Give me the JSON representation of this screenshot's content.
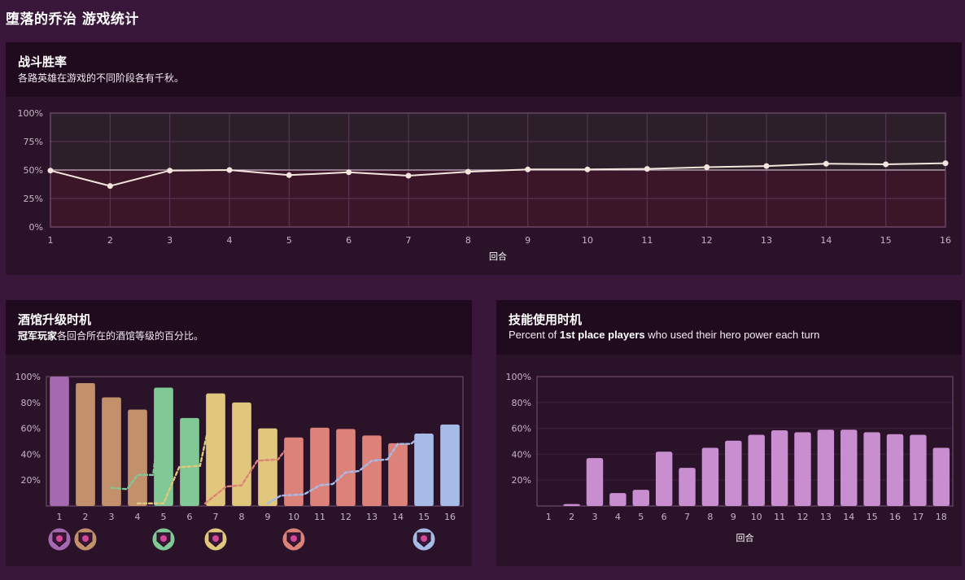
{
  "page": {
    "title": "堕落的乔治 游戏统计"
  },
  "winrate": {
    "title": "战斗胜率",
    "subtitle": "各路英雄在游戏的不同阶段各有千秋。",
    "colors": {
      "line": "#f5e6dd",
      "upper_band": "#2d1f2a",
      "lower_band": "#3b1528",
      "frame": "#7a5277"
    }
  },
  "tavern": {
    "title": "酒馆升级时机",
    "subtitle_bold": "冠军玩家",
    "subtitle_rest": "各回合所在的酒馆等级的百分比。"
  },
  "hero_power": {
    "title": "技能使用时机",
    "subtitle_pre": "Percent of ",
    "subtitle_bold": "1st place players",
    "subtitle_post": " who used their hero power each turn"
  },
  "chart_data": [
    {
      "type": "line",
      "title": "战斗胜率",
      "xlabel": "回合",
      "ylabel": "",
      "x": [
        1,
        2,
        3,
        4,
        5,
        6,
        7,
        8,
        9,
        10,
        11,
        12,
        13,
        14,
        15,
        16
      ],
      "y_ticks": [
        "0%",
        "25%",
        "50%",
        "75%",
        "100%"
      ],
      "ylim": [
        0,
        100
      ],
      "reference_line": 50,
      "series": [
        {
          "values": [
            49.5,
            36,
            49.5,
            50,
            45.5,
            48,
            45,
            48.5,
            50.5,
            50.5,
            51,
            52.5,
            53.5,
            55.5,
            55,
            56
          ]
        }
      ],
      "grid": true
    },
    {
      "type": "bar",
      "title": "酒馆升级时机",
      "xlabel": "",
      "categories": [
        "1",
        "2",
        "3",
        "4",
        "5",
        "6",
        "7",
        "8",
        "9",
        "10",
        "11",
        "12",
        "13",
        "14",
        "15",
        "16"
      ],
      "y_ticks": [
        "20%",
        "40%",
        "60%",
        "80%",
        "100%"
      ],
      "ylim": [
        0,
        100
      ],
      "values": [
        100,
        95,
        84,
        74.5,
        91.5,
        68,
        87,
        80,
        60,
        53,
        60.5,
        59.5,
        54.5,
        48.5,
        56,
        63
      ],
      "bar_colors": [
        "#a469b1",
        "#c2916b",
        "#c2916b",
        "#c2916b",
        "#80c896",
        "#80c896",
        "#e1c77c",
        "#e1c77c",
        "#e1c77c",
        "#dd8278",
        "#dd8278",
        "#dd8278",
        "#dd8278",
        "#dd8278",
        "#a6bbe6",
        "#a6bbe6"
      ],
      "tier_lines": [
        {
          "color": "#80c896",
          "start": 3,
          "values": [
            {
              "x": 3,
              "y": 14
            },
            {
              "x": 3.6,
              "y": 13
            },
            {
              "x": 4,
              "y": 24
            },
            {
              "x": 4.6,
              "y": 24
            },
            {
              "x": 5,
              "y": 91
            }
          ]
        },
        {
          "color": "#e1c77c",
          "start": 4,
          "values": [
            {
              "x": 4,
              "y": 2
            },
            {
              "x": 5,
              "y": 2
            },
            {
              "x": 5.6,
              "y": 30
            },
            {
              "x": 6.4,
              "y": 31
            },
            {
              "x": 7,
              "y": 86
            }
          ]
        },
        {
          "color": "#dd8278",
          "start": 7,
          "values": [
            {
              "x": 6.6,
              "y": 2
            },
            {
              "x": 7.4,
              "y": 15
            },
            {
              "x": 8,
              "y": 16
            },
            {
              "x": 8.6,
              "y": 35
            },
            {
              "x": 9.4,
              "y": 36
            },
            {
              "x": 10,
              "y": 52
            }
          ]
        },
        {
          "color": "#a6bbe6",
          "start": 9,
          "values": [
            {
              "x": 9,
              "y": 2
            },
            {
              "x": 9.5,
              "y": 8
            },
            {
              "x": 10.4,
              "y": 9
            },
            {
              "x": 11,
              "y": 16
            },
            {
              "x": 11.5,
              "y": 17
            },
            {
              "x": 12,
              "y": 26
            },
            {
              "x": 12.5,
              "y": 27
            },
            {
              "x": 13,
              "y": 35
            },
            {
              "x": 13.6,
              "y": 36
            },
            {
              "x": 14,
              "y": 48
            },
            {
              "x": 14.5,
              "y": 48
            },
            {
              "x": 15,
              "y": 56
            }
          ]
        }
      ],
      "tier_markers": [
        {
          "turn": 1,
          "color": "#a469b1",
          "icon": "tavern-tier-1-icon"
        },
        {
          "turn": 2,
          "color": "#c2916b",
          "icon": "tavern-tier-2-icon"
        },
        {
          "turn": 5,
          "color": "#80c896",
          "icon": "tavern-tier-3-icon"
        },
        {
          "turn": 7,
          "color": "#e1c77c",
          "icon": "tavern-tier-4-icon"
        },
        {
          "turn": 10,
          "color": "#dd8278",
          "icon": "tavern-tier-5-icon"
        },
        {
          "turn": 15,
          "color": "#a6bbe6",
          "icon": "tavern-tier-6-icon"
        }
      ],
      "grid": false
    },
    {
      "type": "bar",
      "title": "技能使用时机",
      "xlabel": "回合",
      "categories": [
        "1",
        "2",
        "3",
        "4",
        "5",
        "6",
        "7",
        "8",
        "9",
        "10",
        "11",
        "12",
        "13",
        "14",
        "15",
        "16",
        "17",
        "18"
      ],
      "y_ticks": [
        "20%",
        "40%",
        "60%",
        "80%",
        "100%"
      ],
      "ylim": [
        0,
        100
      ],
      "values": [
        0,
        1.5,
        37,
        10,
        12.5,
        42,
        29.5,
        45,
        50.5,
        55,
        58.5,
        57,
        59,
        59,
        57,
        55.5,
        55,
        45
      ],
      "bar_color": "#c98ecf",
      "grid": true
    }
  ]
}
